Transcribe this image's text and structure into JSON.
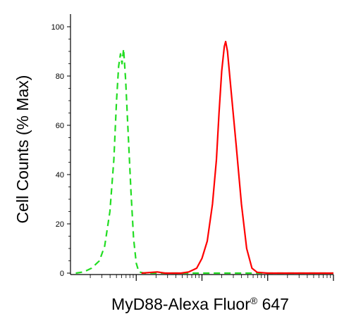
{
  "chart_data": {
    "type": "line",
    "xlabel": "MyD88-Alexa Fluor",
    "xlabel_super": "®",
    "xlabel_suffix": " 647",
    "ylabel": "Cell Counts (% Max)",
    "ylim": [
      0,
      100
    ],
    "yticks": [
      "0",
      "20",
      "40",
      "60",
      "80",
      "100"
    ],
    "xlim": [
      0,
      1
    ],
    "x_scale": "log",
    "series": [
      {
        "color": "#22dd22",
        "style": "dashed",
        "points": [
          [
            0.02,
            0
          ],
          [
            0.05,
            0.5
          ],
          [
            0.08,
            2
          ],
          [
            0.11,
            5
          ],
          [
            0.13,
            11
          ],
          [
            0.15,
            25
          ],
          [
            0.165,
            46
          ],
          [
            0.175,
            70
          ],
          [
            0.183,
            84
          ],
          [
            0.19,
            89
          ],
          [
            0.196,
            85
          ],
          [
            0.202,
            91
          ],
          [
            0.21,
            78
          ],
          [
            0.22,
            55
          ],
          [
            0.23,
            33
          ],
          [
            0.24,
            14
          ],
          [
            0.25,
            4
          ],
          [
            0.26,
            0.5
          ],
          [
            0.28,
            0
          ],
          [
            0.5,
            0
          ],
          [
            0.6,
            0
          ],
          [
            0.68,
            0
          ],
          [
            0.75,
            0
          ],
          [
            1,
            0
          ]
        ]
      },
      {
        "color": "#ff0000",
        "style": "solid",
        "points": [
          [
            0.27,
            0
          ],
          [
            0.33,
            0.5
          ],
          [
            0.36,
            0
          ],
          [
            0.42,
            0
          ],
          [
            0.45,
            0.5
          ],
          [
            0.48,
            2
          ],
          [
            0.5,
            6
          ],
          [
            0.52,
            13
          ],
          [
            0.54,
            28
          ],
          [
            0.555,
            46
          ],
          [
            0.565,
            65
          ],
          [
            0.575,
            82
          ],
          [
            0.585,
            92
          ],
          [
            0.59,
            94
          ],
          [
            0.597,
            90
          ],
          [
            0.61,
            75
          ],
          [
            0.63,
            52
          ],
          [
            0.65,
            28
          ],
          [
            0.67,
            10
          ],
          [
            0.69,
            2
          ],
          [
            0.71,
            0.3
          ],
          [
            0.75,
            0
          ],
          [
            0.85,
            0
          ],
          [
            1,
            0
          ]
        ]
      }
    ]
  }
}
